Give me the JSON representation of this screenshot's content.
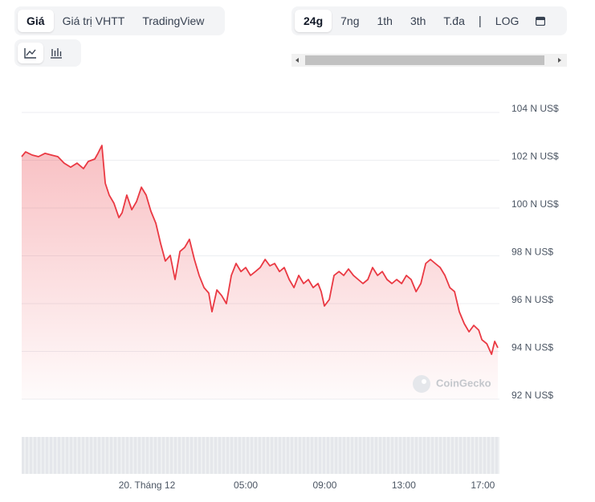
{
  "ui": {
    "price_tabs": [
      "Giá",
      "Giá trị VHTT",
      "TradingView"
    ],
    "range_tabs": [
      "24g",
      "7ng",
      "1th",
      "3th",
      "T.đa"
    ],
    "scale_toggle": "LOG"
  },
  "chart_data": {
    "type": "area",
    "watermark": "CoinGecko",
    "x": [
      -6.34,
      -6.14,
      -5.81,
      -5.49,
      -5.16,
      -4.84,
      -4.51,
      -4.19,
      -3.86,
      -3.54,
      -3.21,
      -2.97,
      -2.64,
      -2.48,
      -2.28,
      -2.11,
      -1.91,
      -1.67,
      -1.42,
      -1.26,
      -1.02,
      -0.77,
      -0.53,
      -0.28,
      -0.04,
      0.2,
      0.45,
      0.69,
      0.93,
      1.18,
      1.42,
      1.67,
      1.91,
      2.15,
      2.4,
      2.64,
      2.89,
      3.13,
      3.29,
      3.54,
      3.78,
      4.02,
      4.27,
      4.51,
      4.76,
      5.0,
      5.24,
      5.49,
      5.73,
      5.98,
      6.22,
      6.46,
      6.71,
      6.95,
      7.2,
      7.44,
      7.68,
      7.93,
      8.17,
      8.41,
      8.66,
      8.82,
      8.98,
      9.23,
      9.47,
      9.72,
      9.96,
      10.2,
      10.45,
      10.69,
      10.93,
      11.18,
      11.42,
      11.67,
      11.91,
      12.15,
      12.4,
      12.64,
      12.89,
      13.13,
      13.37,
      13.62,
      13.86,
      14.11,
      14.35,
      14.59,
      14.84,
      15.08,
      15.33,
      15.57,
      15.81,
      16.06,
      16.3,
      16.54,
      16.79,
      16.95,
      17.2,
      17.44,
      17.6,
      17.76
    ],
    "series": [
      {
        "name": "Giá",
        "color": "#ea3943",
        "values": [
          102.15,
          102.35,
          102.22,
          102.15,
          102.29,
          102.22,
          102.15,
          101.88,
          101.71,
          101.88,
          101.65,
          101.95,
          102.05,
          102.29,
          102.62,
          101.04,
          100.54,
          100.2,
          99.6,
          99.8,
          100.54,
          99.93,
          100.27,
          100.87,
          100.54,
          99.87,
          99.36,
          98.52,
          97.78,
          98.02,
          97.01,
          98.18,
          98.35,
          98.69,
          97.85,
          97.18,
          96.67,
          96.44,
          95.66,
          96.57,
          96.34,
          96.0,
          97.18,
          97.68,
          97.34,
          97.51,
          97.18,
          97.34,
          97.51,
          97.85,
          97.58,
          97.68,
          97.34,
          97.51,
          97.01,
          96.67,
          97.18,
          96.84,
          97.01,
          96.67,
          96.84,
          96.5,
          95.9,
          96.17,
          97.18,
          97.34,
          97.18,
          97.45,
          97.18,
          97.01,
          96.84,
          97.01,
          97.51,
          97.18,
          97.34,
          97.01,
          96.84,
          97.01,
          96.84,
          97.18,
          97.01,
          96.5,
          96.84,
          97.68,
          97.85,
          97.68,
          97.51,
          97.18,
          96.67,
          96.5,
          95.66,
          95.16,
          94.82,
          95.09,
          94.89,
          94.49,
          94.32,
          93.88,
          94.42,
          94.15
        ]
      }
    ],
    "xlim": [
      -6.34,
      17.84
    ],
    "xticks": [
      {
        "value": 0,
        "label": "20. Tháng 12"
      },
      {
        "value": 5,
        "label": "05:00"
      },
      {
        "value": 9,
        "label": "09:00"
      },
      {
        "value": 13,
        "label": "13:00"
      },
      {
        "value": 17,
        "label": "17:00"
      }
    ],
    "ylim": [
      92,
      104
    ],
    "yticks": [
      {
        "value": 92,
        "label": "92 N US$"
      },
      {
        "value": 94,
        "label": "94 N US$"
      },
      {
        "value": 96,
        "label": "96 N US$"
      },
      {
        "value": 98,
        "label": "98 N US$"
      },
      {
        "value": 100,
        "label": "100 N US$"
      },
      {
        "value": 102,
        "label": "102 N US$"
      },
      {
        "value": 104,
        "label": "104 N US$"
      }
    ],
    "grid": true
  }
}
